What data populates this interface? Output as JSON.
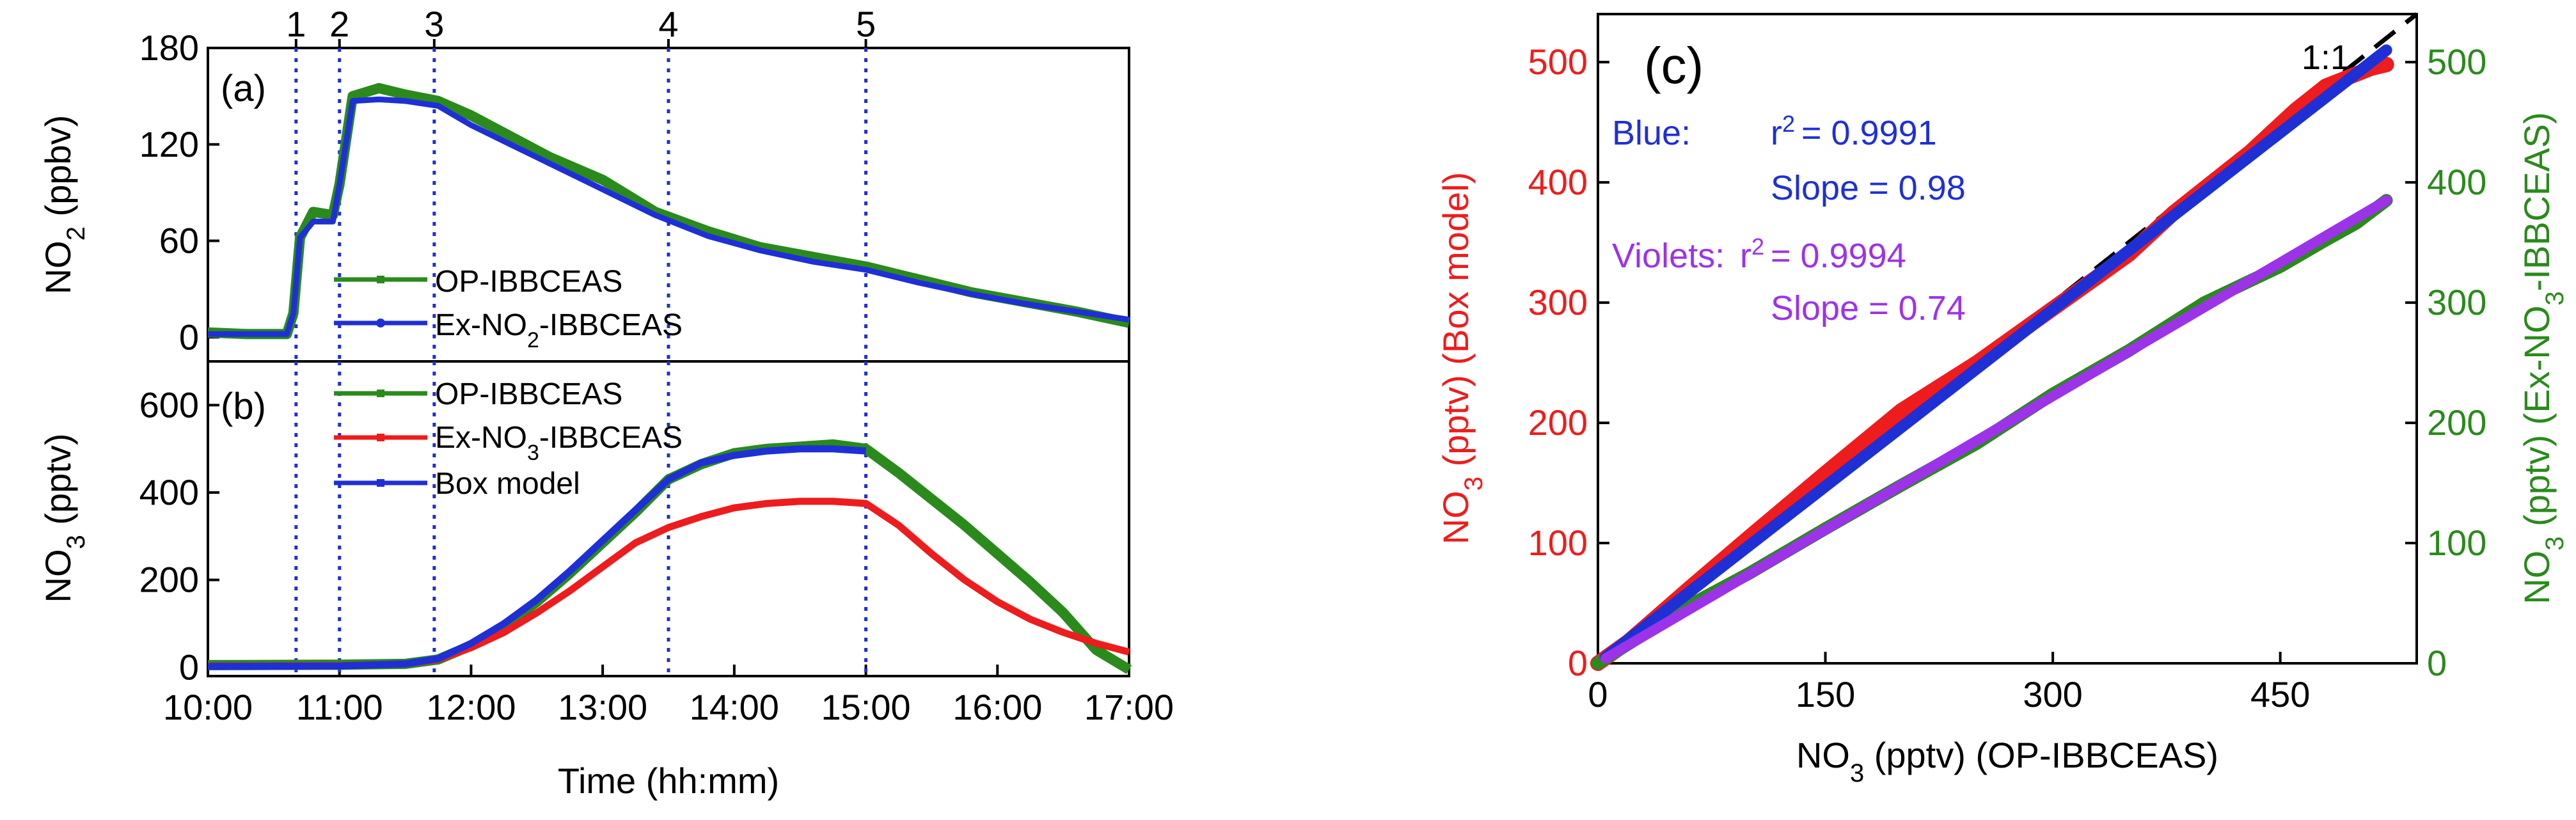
{
  "chart_data": [
    {
      "id": "a",
      "type": "line",
      "panel_label": "(a)",
      "ylabel": "NO2 (ppbv)",
      "ylabel_main": "NO",
      "ylabel_sub": "2",
      "ylabel_tail": " (ppbv)",
      "xlim": [
        10,
        17
      ],
      "ylim": [
        -15,
        180
      ],
      "yticks": [
        0,
        60,
        120,
        180
      ],
      "ytick_labels": [
        "0",
        "60",
        "120",
        "180"
      ],
      "event_markers": [
        {
          "label": "1",
          "x": 10.67
        },
        {
          "label": "2",
          "x": 11.0
        },
        {
          "label": "3",
          "x": 11.72
        },
        {
          "label": "4",
          "x": 13.5
        },
        {
          "label": "5",
          "x": 15.0
        }
      ],
      "legend": [
        {
          "label": "OP-IBBCEAS",
          "color": "#2a8a1c"
        },
        {
          "label": "Ex-NO2-IBBCEAS",
          "main": "Ex-NO",
          "sub": "2",
          "tail": "-IBBCEAS",
          "color": "#1f2fd6"
        }
      ],
      "series": [
        {
          "name": "OP-IBBCEAS",
          "color": "#2a8a1c",
          "x": [
            10.0,
            10.3,
            10.6,
            10.65,
            10.7,
            10.8,
            10.95,
            11.0,
            11.1,
            11.3,
            11.5,
            11.75,
            12.0,
            12.3,
            12.6,
            13.0,
            13.4,
            13.8,
            14.2,
            14.6,
            15.0,
            15.4,
            15.8,
            16.2,
            16.6,
            17.0
          ],
          "y": [
            3,
            2,
            2,
            15,
            62,
            78,
            76,
            95,
            150,
            155,
            151,
            147,
            138,
            125,
            112,
            98,
            78,
            66,
            56,
            50,
            44,
            36,
            28,
            22,
            16,
            9
          ]
        },
        {
          "name": "Ex-NO2-IBBCEAS",
          "color": "#1f2fd6",
          "x": [
            10.0,
            10.6,
            10.65,
            10.7,
            10.8,
            10.95,
            11.0,
            11.1,
            11.3,
            11.5,
            11.75,
            12.0,
            12.3,
            12.6,
            13.0,
            13.4,
            13.8,
            14.2,
            14.6,
            15.0,
            15.4,
            15.8,
            16.2,
            16.6,
            17.0
          ],
          "y": [
            2,
            2,
            15,
            62,
            72,
            72,
            95,
            147,
            148,
            147,
            144,
            132,
            120,
            108,
            92,
            76,
            63,
            54,
            47,
            42,
            34,
            27,
            21,
            16,
            11
          ]
        }
      ]
    },
    {
      "id": "b",
      "type": "line",
      "panel_label": "(b)",
      "ylabel": "NO3 (pptv)",
      "ylabel_main": "NO",
      "ylabel_sub": "3",
      "ylabel_tail": " (pptv)",
      "xlabel": "Time (hh:mm)",
      "xlim": [
        10,
        17
      ],
      "ylim": [
        -20,
        700
      ],
      "xticks": [
        10,
        11,
        12,
        13,
        14,
        15,
        16,
        17
      ],
      "xtick_labels": [
        "10:00",
        "11:00",
        "12:00",
        "13:00",
        "14:00",
        "15:00",
        "16:00",
        "17:00"
      ],
      "yticks": [
        0,
        200,
        400,
        600
      ],
      "ytick_labels": [
        "0",
        "200",
        "400",
        "600"
      ],
      "legend": [
        {
          "label": "OP-IBBCEAS",
          "color": "#2a8a1c"
        },
        {
          "label": "Ex-NO3-IBBCEAS",
          "main": "Ex-NO",
          "sub": "3",
          "tail": "-IBBCEAS",
          "color": "#ee1c1c"
        },
        {
          "label": "Box model",
          "color": "#1f2fd6"
        }
      ],
      "series": [
        {
          "name": "OP-IBBCEAS",
          "color": "#2a8a1c",
          "x": [
            10.0,
            11.0,
            11.5,
            11.75,
            12.0,
            12.25,
            12.5,
            12.75,
            13.0,
            13.25,
            13.5,
            13.75,
            14.0,
            14.25,
            14.5,
            14.75,
            15.0,
            15.25,
            15.5,
            15.75,
            16.0,
            16.25,
            16.5,
            16.75,
            17.0
          ],
          "y": [
            5,
            6,
            8,
            18,
            50,
            95,
            150,
            215,
            285,
            355,
            430,
            465,
            490,
            500,
            505,
            510,
            500,
            445,
            385,
            325,
            260,
            195,
            125,
            40,
            -5
          ]
        },
        {
          "name": "Ex-NO3-IBBCEAS",
          "color": "#ee1c1c",
          "x": [
            10.0,
            11.0,
            11.5,
            11.75,
            12.0,
            12.25,
            12.5,
            12.75,
            13.0,
            13.25,
            13.5,
            13.75,
            14.0,
            14.25,
            14.5,
            14.75,
            15.0,
            15.25,
            15.5,
            15.75,
            16.0,
            16.25,
            16.5,
            16.75,
            17.0
          ],
          "y": [
            3,
            4,
            8,
            18,
            45,
            80,
            125,
            175,
            230,
            285,
            320,
            345,
            365,
            375,
            380,
            380,
            375,
            325,
            260,
            200,
            150,
            110,
            80,
            55,
            35
          ]
        },
        {
          "name": "Box model",
          "color": "#1f2fd6",
          "x": [
            10.0,
            11.0,
            11.5,
            11.75,
            12.0,
            12.25,
            12.5,
            12.75,
            13.0,
            13.25,
            13.5,
            13.75,
            14.0,
            14.25,
            14.5,
            14.75,
            15.0
          ],
          "y": [
            2,
            3,
            8,
            20,
            55,
            100,
            155,
            220,
            290,
            360,
            430,
            468,
            485,
            495,
            500,
            500,
            495
          ]
        }
      ]
    },
    {
      "id": "c",
      "type": "scatter",
      "panel_label": "(c)",
      "xlabel": "NO3 (pptv) (OP-IBBCEAS)",
      "xlabel_main": "NO",
      "xlabel_sub": "3",
      "xlabel_tail": " (pptv) (OP-IBBCEAS)",
      "ylabel_left": "NO3 (pptv) (Box model)",
      "ylabel_left_main": "NO",
      "ylabel_left_sub": "3",
      "ylabel_left_tail": " (pptv) (Box model)",
      "ylabel_right": "NO3 (pptv) (Ex-NO3-IBBCEAS)",
      "ylabel_right_main": "NO",
      "ylabel_right_sub": "3",
      "ylabel_right_mid": " (pptv) (Ex-NO",
      "ylabel_right_sub2": "3",
      "ylabel_right_tail": "-IBBCEAS)",
      "xlim": [
        0,
        540
      ],
      "ylim": [
        0,
        540
      ],
      "xticks": [
        0,
        150,
        300,
        450
      ],
      "xtick_labels": [
        "0",
        "150",
        "300",
        "450"
      ],
      "yticks": [
        0,
        100,
        200,
        300,
        400,
        500
      ],
      "ytick_labels": [
        "0",
        "100",
        "200",
        "300",
        "400",
        "500"
      ],
      "left_axis_color": "#ee1c1c",
      "right_axis_color": "#2a8a1c",
      "one_to_one_label": "1:1",
      "annotations": {
        "blue_label": "Blue:",
        "blue_r2": "= 0.9991",
        "blue_slope": "Slope = 0.98",
        "violet_label": "Violets:",
        "violet_r2": "= 0.9994",
        "violet_slope": "Slope = 0.74",
        "r_symbol": "r",
        "r_exp": "2"
      },
      "series": [
        {
          "name": "Box model vs OP-IBBCEAS",
          "color": "#ee1c1c",
          "x": [
            0,
            20,
            60,
            100,
            150,
            200,
            250,
            300,
            350,
            380,
            400,
            430,
            460,
            480,
            510,
            520
          ],
          "y": [
            0,
            18,
            62,
            105,
            158,
            210,
            250,
            295,
            340,
            375,
            395,
            425,
            460,
            480,
            495,
            498
          ]
        },
        {
          "name": "Ex-NO3-IBBCEAS vs OP-IBBCEAS",
          "color": "#2a8a1c",
          "x": [
            0,
            20,
            60,
            100,
            150,
            200,
            250,
            300,
            350,
            400,
            450,
            480,
            500,
            520
          ],
          "y": [
            0,
            16,
            48,
            75,
            112,
            148,
            183,
            224,
            260,
            300,
            330,
            352,
            366,
            385
          ]
        },
        {
          "name": "Blue fit",
          "color": "#1f2fd6",
          "slope": 0.98,
          "r2": 0.9991,
          "x": [
            5,
            520
          ],
          "y": [
            5,
            510
          ]
        },
        {
          "name": "Violet fit",
          "color": "#9c33e8",
          "slope": 0.74,
          "r2": 0.9994,
          "x": [
            5,
            520
          ],
          "y": [
            4,
            385
          ]
        }
      ]
    }
  ]
}
